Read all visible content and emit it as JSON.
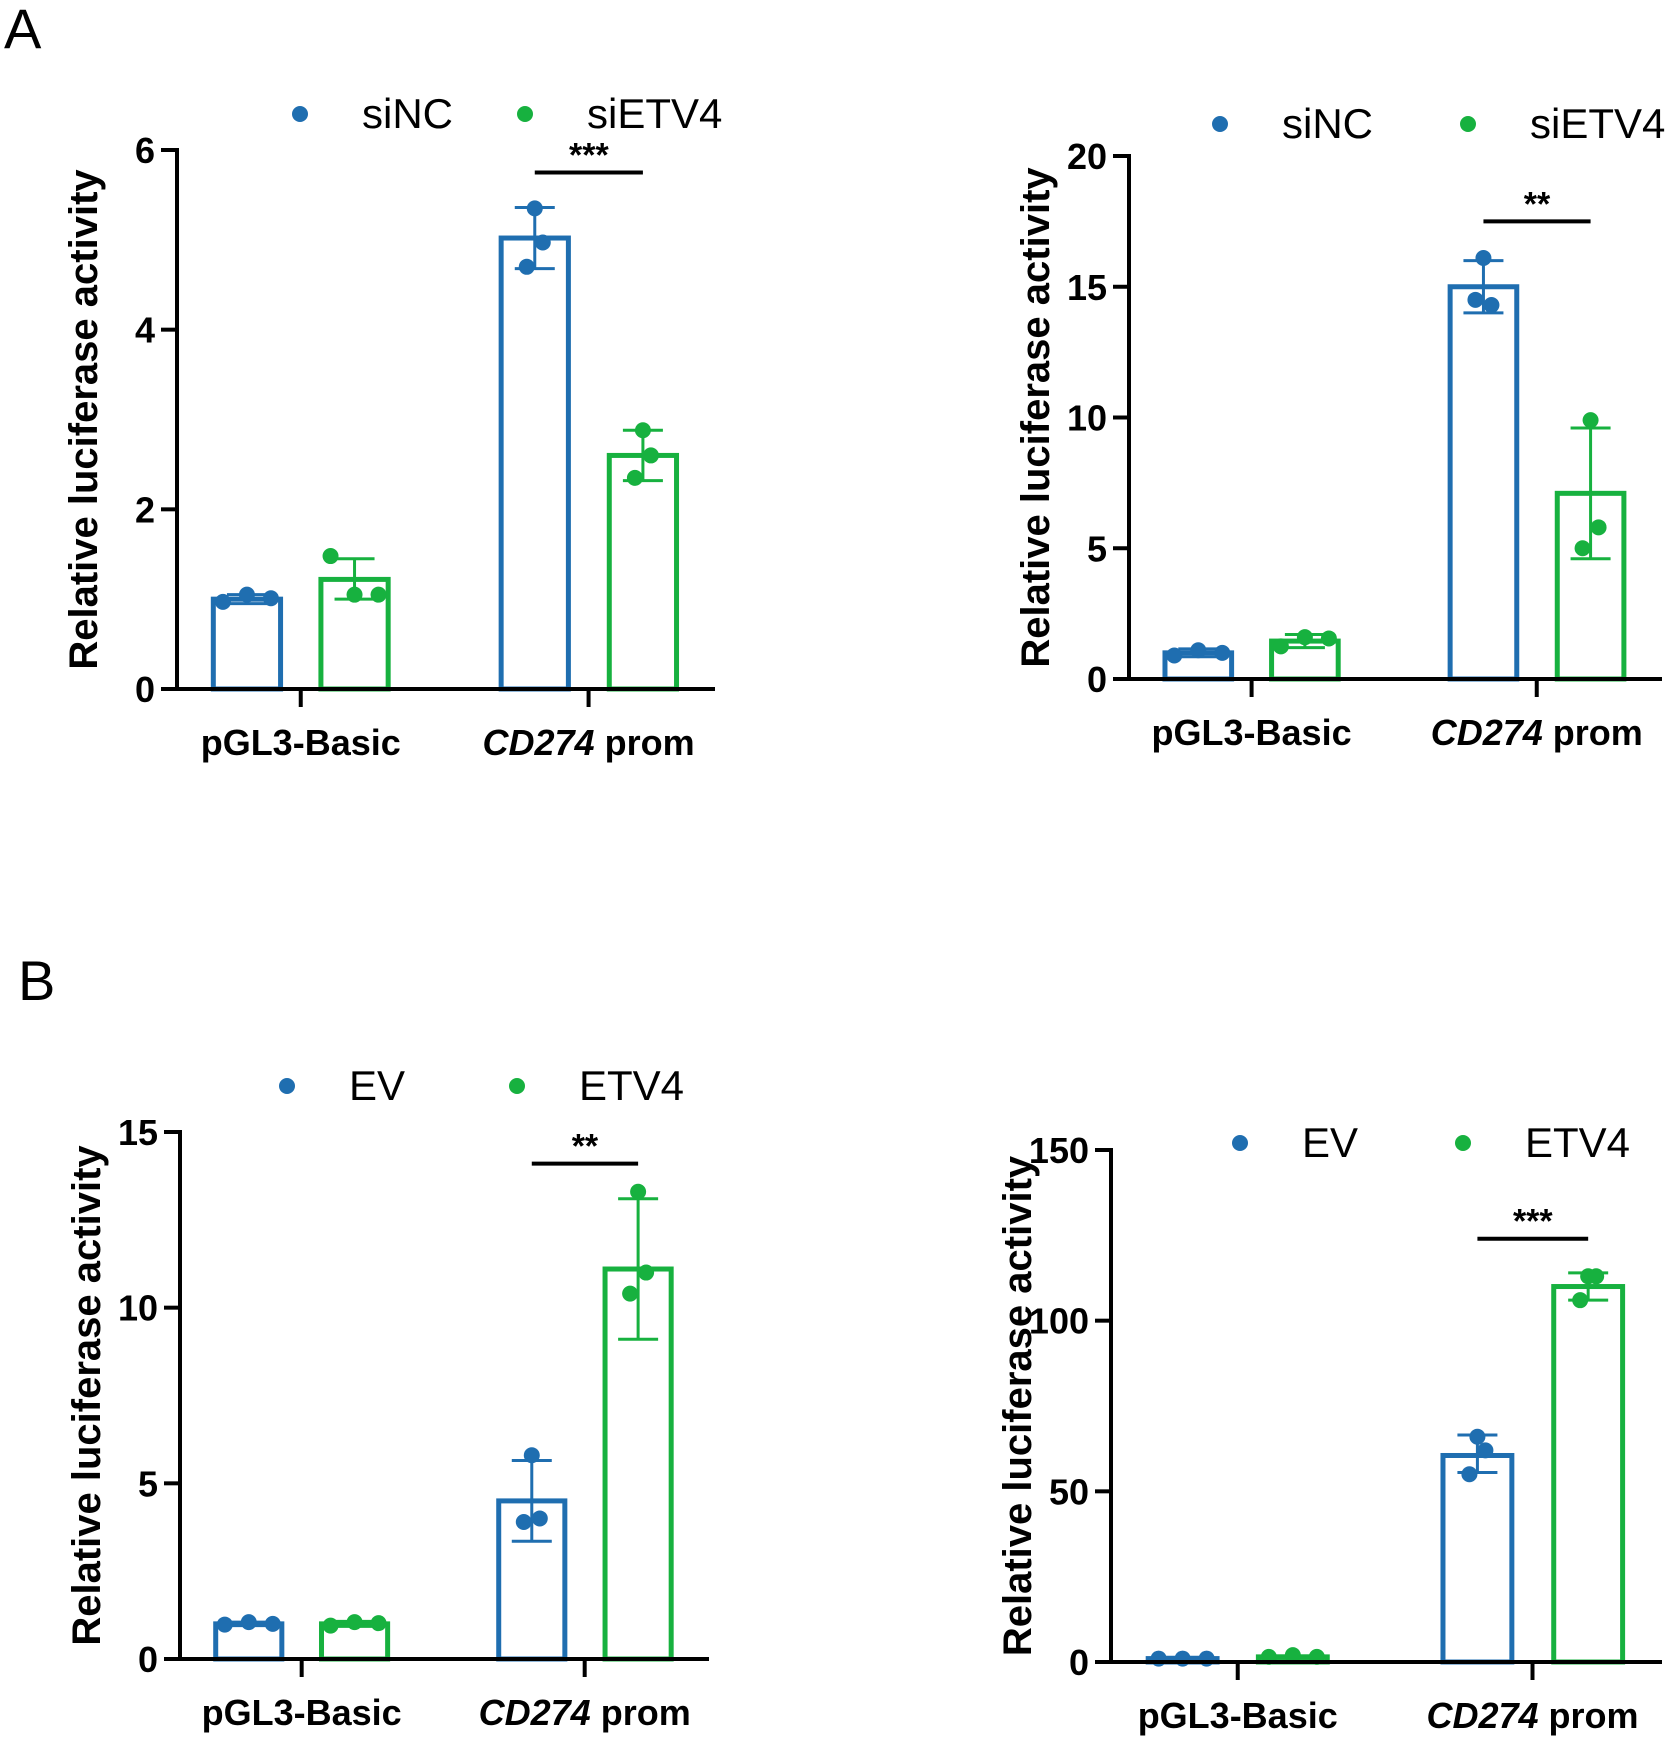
{
  "panels": [
    {
      "label": "A"
    },
    {
      "label": "B"
    }
  ],
  "colors": {
    "blue": "#1f6eb0",
    "green": "#17b13f",
    "axis": "#000000"
  },
  "chart_data": [
    {
      "type": "bar",
      "panel": "A",
      "ylabel": "Relative luciferase activity",
      "ylim": [
        0,
        6
      ],
      "yticks": [
        0,
        2,
        4,
        6
      ],
      "categories": [
        "pGL3-Basic",
        "CD274 prom"
      ],
      "category_italic_part": [
        "",
        "CD274"
      ],
      "legend": [
        "siNC",
        "siETV4"
      ],
      "legend_placement": "top",
      "series": [
        {
          "name": "siNC",
          "color": "blue",
          "values": [
            1.0,
            5.02
          ],
          "err": [
            [
              0.95,
              1.05
            ],
            [
              4.68,
              5.36
            ]
          ],
          "points": [
            [
              0.97,
              1.05,
              1.01
            ],
            [
              5.35,
              4.97,
              4.7
            ]
          ]
        },
        {
          "name": "siETV4",
          "color": "green",
          "values": [
            1.22,
            2.6
          ],
          "err": [
            [
              1.0,
              1.45
            ],
            [
              2.32,
              2.88
            ]
          ],
          "points": [
            [
              1.48,
              1.05,
              1.05
            ],
            [
              2.88,
              2.6,
              2.35
            ]
          ]
        }
      ],
      "significance": {
        "category": "CD274 prom",
        "label": "***",
        "level": 5.75
      }
    },
    {
      "type": "bar",
      "panel": "A",
      "ylabel": "Relative luciferase activity",
      "ylim": [
        0,
        20
      ],
      "yticks": [
        0,
        5,
        10,
        15,
        20
      ],
      "categories": [
        "pGL3-Basic",
        "CD274 prom"
      ],
      "category_italic_part": [
        "",
        "CD274"
      ],
      "legend": [
        "siNC",
        "siETV4"
      ],
      "legend_placement": "top",
      "series": [
        {
          "name": "siNC",
          "color": "blue",
          "values": [
            1.0,
            15.0
          ],
          "err": [
            [
              0.85,
              1.15
            ],
            [
              14.0,
              16.0
            ]
          ],
          "points": [
            [
              0.9,
              1.1,
              1.0
            ],
            [
              16.1,
              14.3,
              14.5
            ]
          ]
        },
        {
          "name": "siETV4",
          "color": "green",
          "values": [
            1.45,
            7.1
          ],
          "err": [
            [
              1.2,
              1.7
            ],
            [
              4.6,
              9.6
            ]
          ],
          "points": [
            [
              1.25,
              1.6,
              1.55
            ],
            [
              9.9,
              5.8,
              5.0
            ]
          ]
        }
      ],
      "significance": {
        "category": "CD274 prom",
        "label": "**",
        "level": 17.5
      }
    },
    {
      "type": "bar",
      "panel": "B",
      "ylabel": "Relative luciferase activity",
      "ylim": [
        0,
        15
      ],
      "yticks": [
        0,
        5,
        10,
        15
      ],
      "categories": [
        "pGL3-Basic",
        "CD274 prom"
      ],
      "category_italic_part": [
        "",
        "CD274"
      ],
      "legend": [
        "EV",
        "ETV4"
      ],
      "legend_placement": "top",
      "series": [
        {
          "name": "EV",
          "color": "blue",
          "values": [
            1.0,
            4.5
          ],
          "err": [
            [
              0.95,
              1.05
            ],
            [
              3.35,
              5.65
            ]
          ],
          "points": [
            [
              0.98,
              1.05,
              1.0
            ],
            [
              5.8,
              4.0,
              3.9
            ]
          ]
        },
        {
          "name": "ETV4",
          "color": "green",
          "values": [
            1.0,
            11.1
          ],
          "err": [
            [
              0.93,
              1.07
            ],
            [
              9.1,
              13.1
            ]
          ],
          "points": [
            [
              0.95,
              1.05,
              1.02
            ],
            [
              13.3,
              11.0,
              10.4
            ]
          ]
        }
      ],
      "significance": {
        "category": "CD274 prom",
        "label": "**",
        "level": 14.1
      }
    },
    {
      "type": "bar",
      "panel": "B",
      "ylabel": "Relative luciferase activity",
      "ylim": [
        0,
        150
      ],
      "yticks": [
        0,
        50,
        100,
        150
      ],
      "categories": [
        "pGL3-Basic",
        "CD274 prom"
      ],
      "category_italic_part": [
        "",
        "CD274"
      ],
      "legend": [
        "EV",
        "ETV4"
      ],
      "legend_placement": "top",
      "series": [
        {
          "name": "EV",
          "color": "blue",
          "values": [
            1.0,
            60.5
          ],
          "err": [
            [
              0.6,
              1.4
            ],
            [
              55.5,
              66.5
            ]
          ],
          "points": [
            [
              1.0,
              1.0,
              1.0
            ],
            [
              66.0,
              62.0,
              55.0
            ]
          ]
        },
        {
          "name": "ETV4",
          "color": "green",
          "values": [
            1.5,
            110.0
          ],
          "err": [
            [
              1.2,
              1.8
            ],
            [
              106.0,
              114.0
            ]
          ],
          "points": [
            [
              1.5,
              2.0,
              1.5
            ],
            [
              113.0,
              113.0,
              106.0
            ]
          ]
        }
      ],
      "significance": {
        "category": "CD274 prom",
        "label": "***",
        "level": 124.0
      }
    }
  ]
}
